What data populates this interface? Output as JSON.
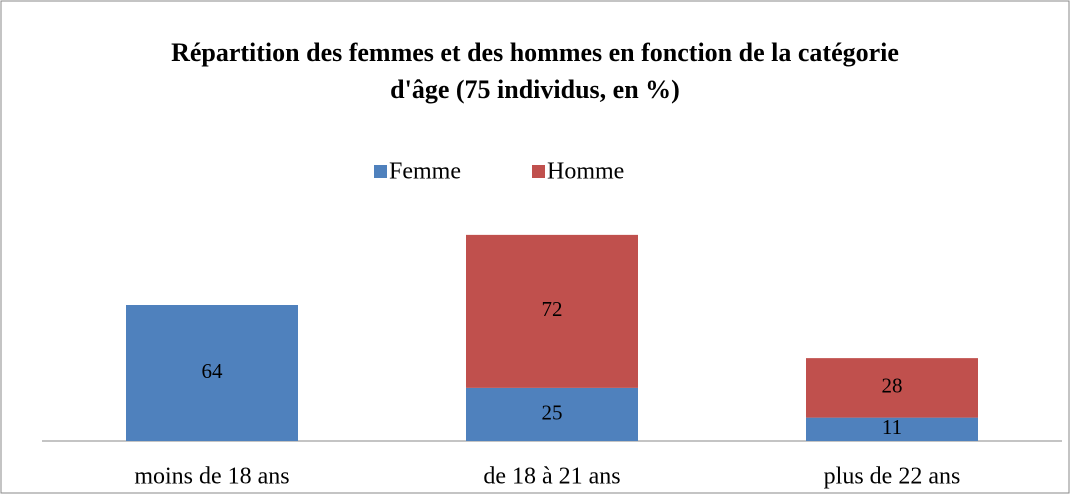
{
  "chart_data": {
    "type": "stacked_bar",
    "title": "Répartition des femmes et des hommes en fonction de la catégorie d'âge (75 individus, en %)",
    "categories": [
      "moins de 18 ans",
      "de 18 à 21 ans",
      "plus de 22 ans"
    ],
    "series": [
      {
        "name": "Femme",
        "color": "#4f81bd",
        "values": [
          64,
          25,
          11
        ]
      },
      {
        "name": "Homme",
        "color": "#c0504d",
        "values": [
          null,
          72,
          28
        ]
      }
    ],
    "legend": "top"
  }
}
